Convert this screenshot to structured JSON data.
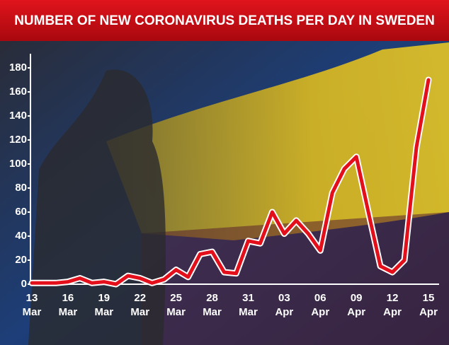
{
  "chart_data": {
    "type": "line",
    "title": "NUMBER OF NEW CORONAVIRUS DEATHS PER DAY IN SWEDEN",
    "categories": [
      "13 Mar",
      null,
      null,
      "16 Mar",
      null,
      null,
      "19 Mar",
      null,
      null,
      "22 Mar",
      null,
      null,
      "25 Mar",
      null,
      null,
      "28 Mar",
      null,
      null,
      "31 Mar",
      null,
      null,
      "03 Apr",
      null,
      null,
      "06 Apr",
      null,
      null,
      "09 Apr",
      null,
      null,
      "12 Apr",
      null,
      null,
      "15 Apr"
    ],
    "series": [
      {
        "name": "Deaths",
        "color": "#e3101b",
        "values": [
          1,
          1,
          1,
          2,
          5,
          1,
          2,
          0,
          7,
          5,
          1,
          4,
          12,
          6,
          25,
          27,
          10,
          9,
          36,
          34,
          60,
          42,
          53,
          42,
          28,
          76,
          96,
          106,
          60,
          15,
          10,
          20,
          114,
          170
        ]
      }
    ],
    "ylim": [
      0,
      180
    ],
    "yticks": [
      0,
      20,
      40,
      60,
      80,
      100,
      120,
      140,
      160,
      180
    ]
  }
}
